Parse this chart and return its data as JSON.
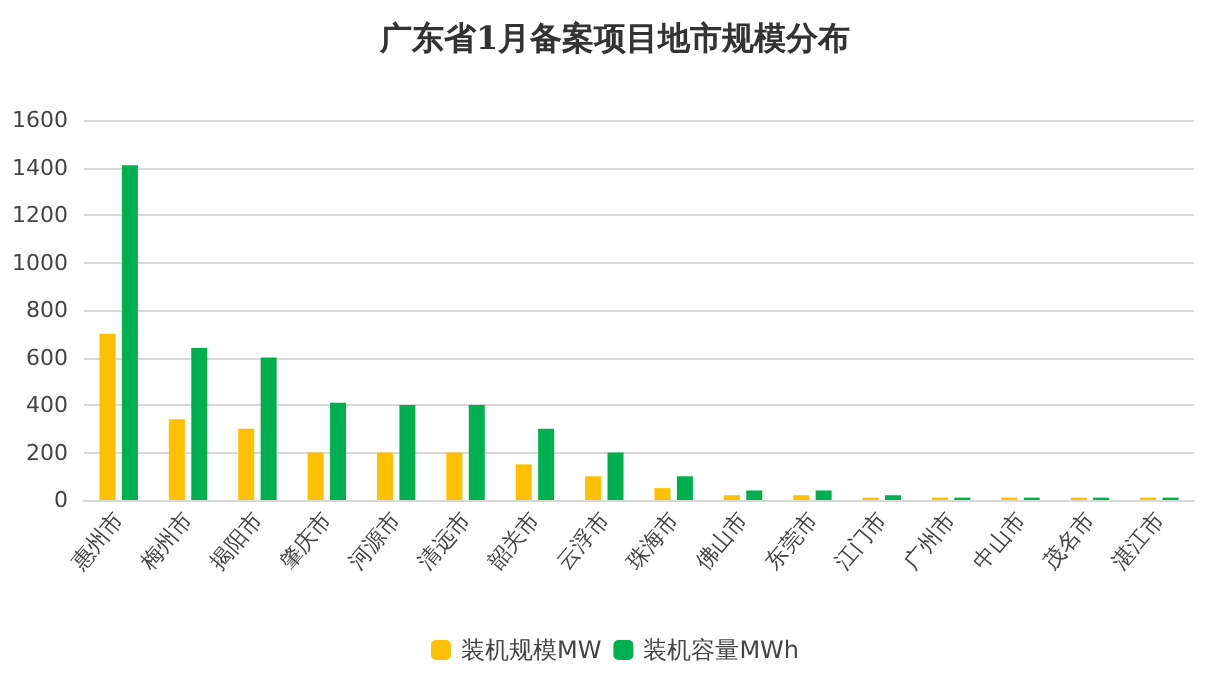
{
  "chart_data": {
    "type": "bar",
    "title": "广东省1月备案项目地市规模分布",
    "categories": [
      "惠州市",
      "梅州市",
      "揭阳市",
      "肇庆市",
      "河源市",
      "清远市",
      "韶关市",
      "云浮市",
      "珠海市",
      "佛山市",
      "东莞市",
      "江门市",
      "广州市",
      "中山市",
      "茂名市",
      "湛江市"
    ],
    "series": [
      {
        "name": "装机规模MW",
        "color": "#ffc000",
        "values": [
          700,
          340,
          300,
          200,
          200,
          200,
          150,
          100,
          50,
          20,
          20,
          10,
          10,
          10,
          10,
          10
        ]
      },
      {
        "name": "装机容量MWh",
        "color": "#00b050",
        "values": [
          1410,
          640,
          600,
          410,
          400,
          400,
          300,
          200,
          100,
          40,
          40,
          20,
          10,
          10,
          10,
          10
        ]
      }
    ],
    "ylim": [
      0,
      1600
    ],
    "yticks": [
      0,
      200,
      400,
      600,
      800,
      1000,
      1200,
      1400,
      1600
    ],
    "grid": "y",
    "legend": "bottom"
  }
}
